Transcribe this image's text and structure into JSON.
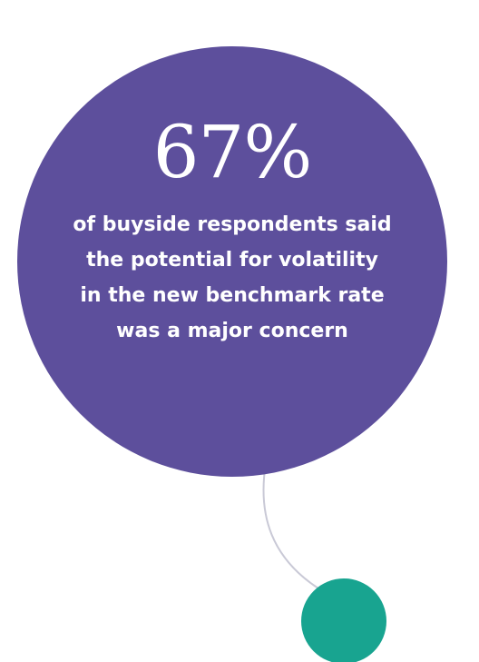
{
  "stat": {
    "value": "67%",
    "description_lines": [
      "of buyside respondents said",
      "the potential for volatility",
      "in the new benchmark rate",
      "was a major concern"
    ]
  },
  "colors": {
    "primary_circle": "#5d4f9c",
    "accent_circle": "#18a490",
    "connector_line": "#c9c9d6",
    "text": "#ffffff",
    "background": "#ffffff"
  }
}
